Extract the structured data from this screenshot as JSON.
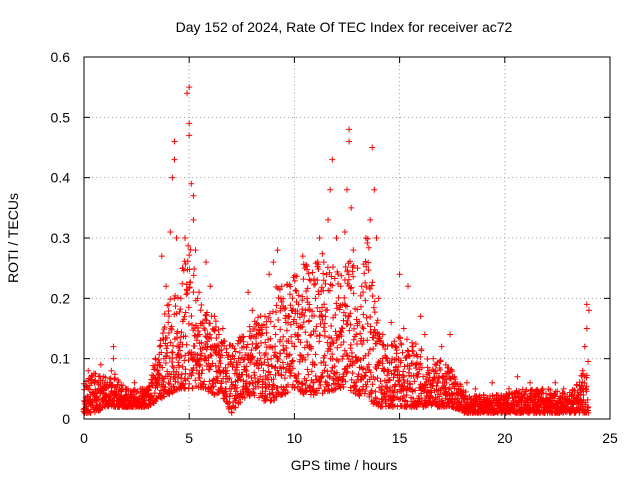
{
  "chart_data": {
    "type": "scatter",
    "title": "Day 152 of 2024, Rate Of TEC Index for receiver ac72",
    "xlabel": "GPS time / hours",
    "ylabel": "ROTI / TECUs",
    "xlim": [
      0,
      25
    ],
    "ylim": [
      0,
      0.6
    ],
    "xticks": [
      0,
      5,
      10,
      15,
      20,
      25
    ],
    "xtick_labels": [
      "0",
      "5",
      "10",
      "15",
      "20",
      "25"
    ],
    "yticks": [
      0,
      0.1,
      0.2,
      0.3,
      0.4,
      0.5,
      0.6
    ],
    "ytick_labels": [
      "0",
      "0.1",
      "0.2",
      "0.3",
      "0.4",
      "0.5",
      "0.6"
    ],
    "grid": true,
    "marker": "plus",
    "color": "#ff0000",
    "points": [
      [
        0.0,
        0.03
      ],
      [
        0.1,
        0.02
      ],
      [
        0.2,
        0.05
      ],
      [
        0.2,
        0.08
      ],
      [
        0.3,
        0.04
      ],
      [
        0.4,
        0.03
      ],
      [
        0.5,
        0.06
      ],
      [
        0.6,
        0.02
      ],
      [
        0.7,
        0.05
      ],
      [
        0.8,
        0.09
      ],
      [
        0.9,
        0.03
      ],
      [
        1.0,
        0.04
      ],
      [
        1.1,
        0.06
      ],
      [
        1.2,
        0.03
      ],
      [
        1.3,
        0.08
      ],
      [
        1.4,
        0.12
      ],
      [
        1.4,
        0.1
      ],
      [
        1.5,
        0.04
      ],
      [
        1.6,
        0.03
      ],
      [
        1.8,
        0.05
      ],
      [
        2.0,
        0.02
      ],
      [
        2.2,
        0.04
      ],
      [
        2.4,
        0.06
      ],
      [
        2.6,
        0.03
      ],
      [
        2.8,
        0.05
      ],
      [
        3.0,
        0.04
      ],
      [
        3.2,
        0.06
      ],
      [
        3.4,
        0.03
      ],
      [
        3.5,
        0.08
      ],
      [
        3.6,
        0.12
      ],
      [
        3.7,
        0.27
      ],
      [
        3.8,
        0.1
      ],
      [
        3.9,
        0.22
      ],
      [
        4.0,
        0.16
      ],
      [
        4.1,
        0.31
      ],
      [
        4.2,
        0.4
      ],
      [
        4.3,
        0.46
      ],
      [
        4.3,
        0.43
      ],
      [
        4.4,
        0.3
      ],
      [
        4.5,
        0.12
      ],
      [
        4.6,
        0.2
      ],
      [
        4.7,
        0.25
      ],
      [
        4.8,
        0.3
      ],
      [
        4.9,
        0.54
      ],
      [
        5.0,
        0.55
      ],
      [
        5.0,
        0.49
      ],
      [
        5.0,
        0.47
      ],
      [
        5.1,
        0.39
      ],
      [
        5.2,
        0.37
      ],
      [
        5.2,
        0.33
      ],
      [
        5.3,
        0.28
      ],
      [
        5.4,
        0.2
      ],
      [
        5.5,
        0.14
      ],
      [
        5.6,
        0.1
      ],
      [
        5.8,
        0.26
      ],
      [
        6.0,
        0.22
      ],
      [
        6.2,
        0.17
      ],
      [
        6.4,
        0.12
      ],
      [
        6.6,
        0.15
      ],
      [
        6.8,
        0.08
      ],
      [
        7.0,
        0.05
      ],
      [
        7.2,
        0.03
      ],
      [
        7.4,
        0.07
      ],
      [
        7.6,
        0.12
      ],
      [
        7.8,
        0.21
      ],
      [
        8.0,
        0.18
      ],
      [
        8.2,
        0.14
      ],
      [
        8.4,
        0.1
      ],
      [
        8.6,
        0.17
      ],
      [
        8.8,
        0.24
      ],
      [
        9.0,
        0.26
      ],
      [
        9.2,
        0.28
      ],
      [
        9.4,
        0.22
      ],
      [
        9.6,
        0.16
      ],
      [
        9.8,
        0.08
      ],
      [
        10.0,
        0.12
      ],
      [
        10.2,
        0.19
      ],
      [
        10.4,
        0.27
      ],
      [
        10.5,
        0.25
      ],
      [
        10.6,
        0.2
      ],
      [
        10.8,
        0.14
      ],
      [
        11.0,
        0.2
      ],
      [
        11.2,
        0.3
      ],
      [
        11.4,
        0.26
      ],
      [
        11.6,
        0.33
      ],
      [
        11.7,
        0.38
      ],
      [
        11.8,
        0.43
      ],
      [
        12.0,
        0.3
      ],
      [
        12.2,
        0.22
      ],
      [
        12.4,
        0.31
      ],
      [
        12.5,
        0.38
      ],
      [
        12.6,
        0.48
      ],
      [
        12.6,
        0.46
      ],
      [
        12.7,
        0.35
      ],
      [
        12.8,
        0.28
      ],
      [
        13.0,
        0.25
      ],
      [
        13.2,
        0.22
      ],
      [
        13.4,
        0.3
      ],
      [
        13.6,
        0.33
      ],
      [
        13.7,
        0.45
      ],
      [
        13.8,
        0.38
      ],
      [
        13.9,
        0.3
      ],
      [
        14.0,
        0.2
      ],
      [
        14.2,
        0.14
      ],
      [
        14.4,
        0.1
      ],
      [
        14.6,
        0.16
      ],
      [
        14.8,
        0.12
      ],
      [
        15.0,
        0.24
      ],
      [
        15.2,
        0.15
      ],
      [
        15.4,
        0.22
      ],
      [
        15.6,
        0.12
      ],
      [
        15.8,
        0.09
      ],
      [
        16.0,
        0.17
      ],
      [
        16.2,
        0.14
      ],
      [
        16.4,
        0.08
      ],
      [
        16.6,
        0.1
      ],
      [
        16.8,
        0.06
      ],
      [
        17.0,
        0.12
      ],
      [
        17.2,
        0.09
      ],
      [
        17.4,
        0.14
      ],
      [
        17.6,
        0.07
      ],
      [
        17.8,
        0.05
      ],
      [
        18.0,
        0.04
      ],
      [
        18.2,
        0.06
      ],
      [
        18.4,
        0.03
      ],
      [
        18.6,
        0.05
      ],
      [
        18.8,
        0.02
      ],
      [
        19.0,
        0.04
      ],
      [
        19.2,
        0.03
      ],
      [
        19.4,
        0.06
      ],
      [
        19.6,
        0.04
      ],
      [
        19.8,
        0.02
      ],
      [
        20.0,
        0.03
      ],
      [
        20.2,
        0.05
      ],
      [
        20.4,
        0.03
      ],
      [
        20.6,
        0.07
      ],
      [
        20.8,
        0.04
      ],
      [
        21.0,
        0.03
      ],
      [
        21.2,
        0.06
      ],
      [
        21.4,
        0.04
      ],
      [
        21.6,
        0.02
      ],
      [
        21.8,
        0.05
      ],
      [
        22.0,
        0.03
      ],
      [
        22.2,
        0.04
      ],
      [
        22.4,
        0.06
      ],
      [
        22.6,
        0.03
      ],
      [
        22.8,
        0.05
      ],
      [
        23.0,
        0.02
      ],
      [
        23.2,
        0.04
      ],
      [
        23.4,
        0.03
      ],
      [
        23.6,
        0.05
      ],
      [
        23.7,
        0.08
      ],
      [
        23.8,
        0.12
      ],
      [
        23.9,
        0.15
      ],
      [
        23.9,
        0.19
      ],
      [
        24.0,
        0.18
      ]
    ],
    "envelope": {
      "x": [
        0,
        0.5,
        1,
        1.5,
        2,
        2.5,
        3,
        3.5,
        4,
        4.5,
        5,
        5.5,
        6,
        6.5,
        7,
        7.5,
        8,
        8.5,
        9,
        9.5,
        10,
        10.5,
        11,
        11.5,
        12,
        12.5,
        13,
        13.5,
        14,
        14.5,
        15,
        15.5,
        16,
        16.5,
        17,
        17.5,
        18,
        18.5,
        19,
        19.5,
        20,
        20.5,
        21,
        21.5,
        22,
        22.5,
        23,
        23.5,
        24
      ],
      "low": [
        0.01,
        0.01,
        0.02,
        0.02,
        0.02,
        0.02,
        0.02,
        0.03,
        0.04,
        0.05,
        0.05,
        0.05,
        0.04,
        0.04,
        0.01,
        0.03,
        0.04,
        0.03,
        0.03,
        0.04,
        0.05,
        0.04,
        0.04,
        0.04,
        0.05,
        0.05,
        0.04,
        0.03,
        0.02,
        0.02,
        0.02,
        0.02,
        0.02,
        0.02,
        0.02,
        0.02,
        0.01,
        0.01,
        0.01,
        0.01,
        0.01,
        0.01,
        0.01,
        0.01,
        0.01,
        0.01,
        0.01,
        0.01,
        0.01
      ],
      "high": [
        0.06,
        0.08,
        0.07,
        0.08,
        0.05,
        0.05,
        0.05,
        0.12,
        0.2,
        0.22,
        0.3,
        0.2,
        0.18,
        0.15,
        0.12,
        0.14,
        0.16,
        0.18,
        0.22,
        0.22,
        0.24,
        0.26,
        0.26,
        0.28,
        0.24,
        0.28,
        0.24,
        0.3,
        0.15,
        0.12,
        0.14,
        0.13,
        0.12,
        0.09,
        0.1,
        0.08,
        0.05,
        0.04,
        0.04,
        0.04,
        0.04,
        0.05,
        0.05,
        0.05,
        0.05,
        0.05,
        0.04,
        0.06,
        0.1
      ]
    }
  }
}
